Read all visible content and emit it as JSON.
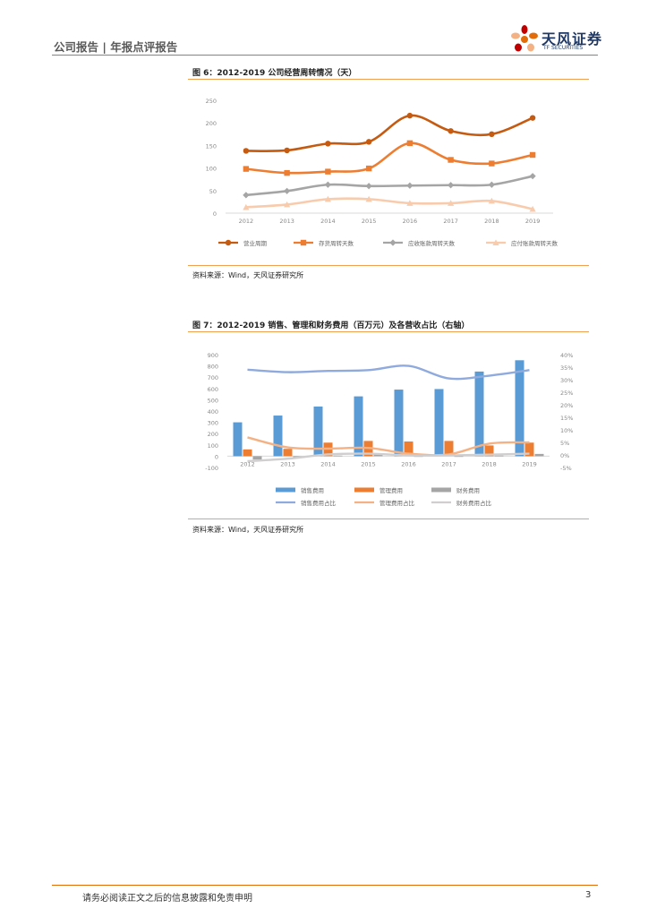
{
  "header": {
    "title": "公司报告 | 年报点评报告",
    "logo_cn": "天风证券",
    "logo_en": "TF SECURITIES"
  },
  "colors": {
    "accent": "#e36c0a",
    "dark_orange": "#c55a11",
    "orange": "#ed7d31",
    "gray": "#a5a5a5",
    "peach": "#f8cbad",
    "blue": "#5b9bd5",
    "light_blue": "#8faadc"
  },
  "figure6": {
    "title": "图 6：2012-2019 公司经营周转情况（天）",
    "source": "资料来源：Wind，天风证券研究所"
  },
  "figure7": {
    "title": "图 7：2012-2019 销售、管理和财务费用（百万元）及各营收占比（右轴）",
    "source": "资料来源：Wind，天风证券研究所"
  },
  "footer": {
    "text": "请务必阅读正文之后的信息披露和免责申明",
    "page": "3"
  },
  "chart_data": [
    {
      "type": "line",
      "categories": [
        "2012",
        "2013",
        "2014",
        "2015",
        "2016",
        "2017",
        "2018",
        "2019"
      ],
      "ylim": [
        0,
        250
      ],
      "yticks": [
        "0",
        "50",
        "100",
        "150",
        "200",
        "250"
      ],
      "grid": false,
      "legend": "bottom",
      "series": [
        {
          "name": "营业周期",
          "color": "#c55a11",
          "marker": "circle",
          "values": [
            138,
            139,
            154,
            158,
            216,
            182,
            175,
            211
          ]
        },
        {
          "name": "存货周转天数",
          "color": "#ed7d31",
          "marker": "square",
          "values": [
            98,
            89,
            92,
            99,
            155,
            118,
            110,
            129
          ]
        },
        {
          "name": "应收账款周转天数",
          "color": "#a5a5a5",
          "marker": "diamond",
          "values": [
            40,
            49,
            63,
            60,
            61,
            62,
            63,
            82
          ]
        },
        {
          "name": "应付账款周转天数",
          "color": "#f8cbad",
          "marker": "triangle",
          "values": [
            13,
            19,
            31,
            31,
            22,
            22,
            27,
            9
          ]
        }
      ]
    },
    {
      "type": "bar",
      "categories": [
        "2012",
        "2013",
        "2014",
        "2015",
        "2016",
        "2017",
        "2018",
        "2019"
      ],
      "ylim": [
        -100,
        900
      ],
      "yticks": [
        "-100",
        "0",
        "100",
        "200",
        "300",
        "400",
        "500",
        "600",
        "700",
        "800",
        "900"
      ],
      "y2lim": [
        -5,
        40
      ],
      "y2ticks": [
        "-5%",
        "0%",
        "5%",
        "10%",
        "15%",
        "20%",
        "25%",
        "30%",
        "35%",
        "40%"
      ],
      "grid": false,
      "legend": "bottom",
      "series": [
        {
          "name": "销售费用",
          "color": "#5b9bd5",
          "kind": "bar",
          "axis": "left",
          "values": [
            300,
            360,
            440,
            530,
            590,
            595,
            750,
            850
          ]
        },
        {
          "name": "管理费用",
          "color": "#ed7d31",
          "kind": "bar",
          "axis": "left",
          "values": [
            60,
            65,
            120,
            135,
            130,
            135,
            95,
            120
          ]
        },
        {
          "name": "财务费用",
          "color": "#a5a5a5",
          "kind": "bar",
          "axis": "left",
          "values": [
            -30,
            -15,
            5,
            15,
            -5,
            -5,
            5,
            20
          ]
        },
        {
          "name": "销售费用占比",
          "color": "#8faadc",
          "kind": "line",
          "axis": "right",
          "values": [
            34.0,
            33.0,
            33.5,
            33.8,
            35.5,
            30.5,
            31.6,
            33.8
          ]
        },
        {
          "name": "管理费用占比",
          "color": "#f4b183",
          "kind": "line",
          "axis": "right",
          "values": [
            7.0,
            3.0,
            2.5,
            2.8,
            0.5,
            0.2,
            4.5,
            5.0
          ]
        },
        {
          "name": "财务费用占比",
          "color": "#d0cece",
          "kind": "line",
          "axis": "right",
          "values": [
            -2.5,
            -1.5,
            0.2,
            0.5,
            -0.2,
            -0.2,
            0.1,
            0.5
          ]
        }
      ]
    }
  ]
}
